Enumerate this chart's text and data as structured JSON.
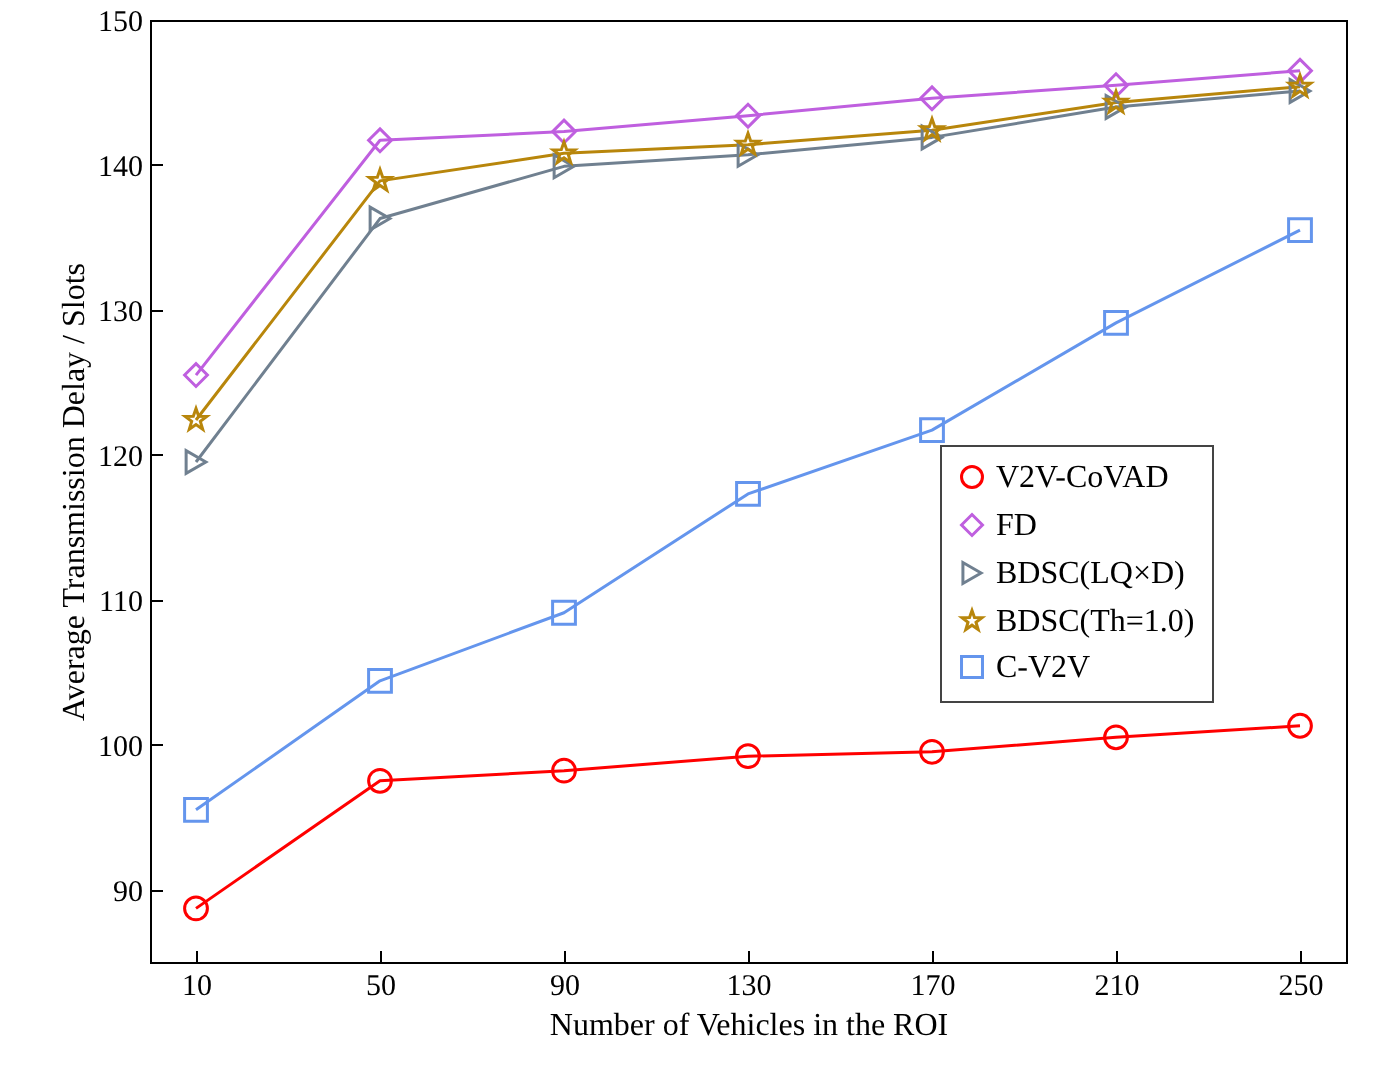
{
  "chart_data": {
    "type": "line",
    "xlabel": "Number of Vehicles in the ROI",
    "ylabel": "Average Transmission Delay / Slots",
    "x": [
      10,
      50,
      90,
      130,
      170,
      210,
      250
    ],
    "series": [
      {
        "name": "V2V-CoVAD",
        "color": "#ff0000",
        "marker": "circle",
        "values": [
          88.7,
          97.5,
          98.2,
          99.2,
          99.5,
          100.5,
          101.3
        ]
      },
      {
        "name": "FD",
        "color": "#bf5fdf",
        "marker": "diamond",
        "values": [
          125.5,
          141.7,
          142.3,
          143.4,
          144.6,
          145.5,
          146.5
        ]
      },
      {
        "name": "BDSC(LQ×D)",
        "color": "#708090",
        "marker": "triangle-right",
        "values": [
          119.5,
          136.3,
          139.9,
          140.7,
          141.9,
          144.0,
          145.1
        ]
      },
      {
        "name": "BDSC(Th=1.0)",
        "color": "#b8860b",
        "marker": "star",
        "values": [
          122.4,
          138.9,
          140.8,
          141.4,
          142.4,
          144.3,
          145.4
        ]
      },
      {
        "name": "C-V2V",
        "color": "#6495ed",
        "marker": "square",
        "values": [
          95.5,
          104.4,
          109.1,
          117.3,
          121.7,
          129.1,
          135.5
        ]
      }
    ],
    "xlim": [
      0,
      260
    ],
    "xticks": [
      10,
      50,
      90,
      130,
      170,
      210,
      250
    ],
    "ylim": [
      85,
      150
    ],
    "yticks": [
      90,
      100,
      110,
      120,
      130,
      140,
      150
    ],
    "grid": false,
    "legend": "right",
    "line_style": "solid"
  }
}
